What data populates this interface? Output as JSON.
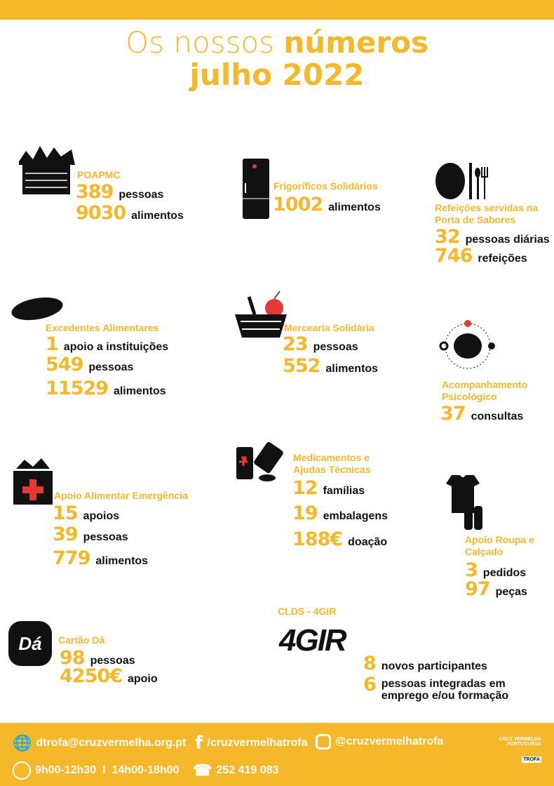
{
  "header": {
    "title_light": "Os nossos ",
    "title_bold": "números",
    "subtitle": "julho 2022"
  },
  "blocks": [
    {
      "title": "POAPMC",
      "stats": [
        {
          "n": "389",
          "l": "pessoas"
        },
        {
          "n": "9030",
          "l": "alimentos"
        }
      ],
      "icon": "food-basket-icon"
    },
    {
      "title": "Frigoríficos Solidários",
      "stats": [
        {
          "n": "1002",
          "l": "alimentos"
        }
      ],
      "icon": "fridge-icon"
    },
    {
      "title": "Refeições servidas na Porta de Sabores",
      "stats": [
        {
          "n": "32",
          "l": "pessoas diárias"
        },
        {
          "n": "746",
          "l": "refeições"
        }
      ],
      "icon": "plate-cutlery-icon"
    },
    {
      "title": "Excedentes Alimentares",
      "stats": [
        {
          "n": "1",
          "l": "apoio a instituições"
        },
        {
          "n": "549",
          "l": "pessoas"
        },
        {
          "n": "11529",
          "l": "alimentos"
        }
      ],
      "icon": "bread-icon"
    },
    {
      "title": "Mercearia Solidária",
      "stats": [
        {
          "n": "23",
          "l": "pessoas"
        },
        {
          "n": "552",
          "l": "alimentos"
        }
      ],
      "icon": "basket-apple-icon"
    },
    {
      "title": "Acompanhamento Psicológico",
      "stats": [
        {
          "n": "37",
          "l": "consultas"
        }
      ],
      "icon": "brain-icon"
    },
    {
      "title": "Apoio Alimentar Emergência",
      "stats": [
        {
          "n": "15",
          "l": "apoios"
        },
        {
          "n": "39",
          "l": "pessoas"
        },
        {
          "n": "779",
          "l": "alimentos"
        }
      ],
      "icon": "emergency-bag-icon"
    },
    {
      "title": "Medicamentos e Ajudas Técnicas",
      "stats": [
        {
          "n": "12",
          "l": "famílias"
        },
        {
          "n": "19",
          "l": "embalagens"
        },
        {
          "n": "188€",
          "l": "doação"
        }
      ],
      "icon": "medicine-icon"
    },
    {
      "title": "Apoio Roupa e Calçado",
      "stats": [
        {
          "n": "3",
          "l": "pedidos"
        },
        {
          "n": "97",
          "l": "peças"
        }
      ],
      "icon": "clothes-icon"
    },
    {
      "title": "Cartão Dá",
      "stats": [
        {
          "n": "98",
          "l": "pessoas"
        },
        {
          "n": "4250€",
          "l": "apoio"
        }
      ],
      "icon": "gift-card-icon",
      "icon_text": "Dá"
    },
    {
      "title": "CLDS - 4GIR",
      "stats": [
        {
          "n": "8",
          "l": "novos participantes"
        },
        {
          "n": "6",
          "l": "pessoas integradas em emprego e/ou formação"
        }
      ],
      "icon": "agir-logo",
      "logo_text": "4GIR"
    }
  ],
  "footer": {
    "email": "dtrofa@cruzvermelha.org.pt",
    "facebook": "/cruzvermelhatrofa",
    "instagram": "@cruzvermelhatrofa",
    "hours": "9h00-12h30  I  14h00-18h00",
    "phone": "252 419 083",
    "logo_line1": "CRUZ VERMELHA",
    "logo_line2": "PORTUGUESA",
    "logo_branch": "TROFA"
  },
  "colors": {
    "accent": "#f5b82a",
    "text": "#111111"
  }
}
